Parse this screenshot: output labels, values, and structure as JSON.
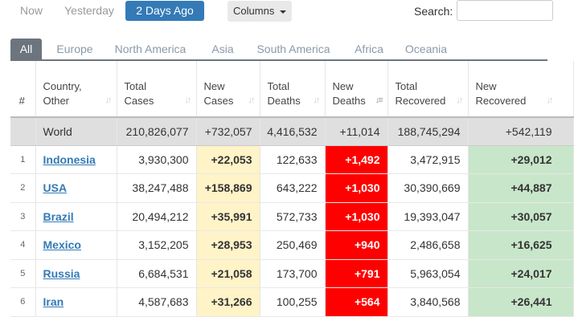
{
  "day_buttons": [
    {
      "label": "Now",
      "active": false
    },
    {
      "label": "Yesterday",
      "active": false
    },
    {
      "label": "2 Days Ago",
      "active": true
    }
  ],
  "columns_button": {
    "label": "Columns"
  },
  "search": {
    "label": "Search:",
    "value": ""
  },
  "region_tabs": [
    "All",
    "Europe",
    "North America",
    "Asia",
    "South America",
    "Africa",
    "Oceania"
  ],
  "active_region": "All",
  "columns": [
    {
      "line1": "#",
      "line2": ""
    },
    {
      "line1": "Country,",
      "line2": "Other"
    },
    {
      "line1": "Total",
      "line2": "Cases"
    },
    {
      "line1": "New",
      "line2": "Cases"
    },
    {
      "line1": "Total",
      "line2": "Deaths"
    },
    {
      "line1": "New",
      "line2": "Deaths"
    },
    {
      "line1": "Total",
      "line2": "Recovered"
    },
    {
      "line1": "New",
      "line2": "Recovered"
    }
  ],
  "world_row": {
    "country": "World",
    "total_cases": "210,826,077",
    "new_cases": "+732,057",
    "total_deaths": "4,416,532",
    "new_deaths": "+11,014",
    "total_recovered": "188,745,294",
    "new_recovered": "+542,119"
  },
  "rows": [
    {
      "idx": "1",
      "country": "Indonesia",
      "total_cases": "3,930,300",
      "new_cases": "+22,053",
      "total_deaths": "122,633",
      "new_deaths": "+1,492",
      "total_recovered": "3,472,915",
      "new_recovered": "+29,012"
    },
    {
      "idx": "2",
      "country": "USA",
      "total_cases": "38,247,488",
      "new_cases": "+158,869",
      "total_deaths": "643,222",
      "new_deaths": "+1,030",
      "total_recovered": "30,390,669",
      "new_recovered": "+44,887"
    },
    {
      "idx": "3",
      "country": "Brazil",
      "total_cases": "20,494,212",
      "new_cases": "+35,991",
      "total_deaths": "572,733",
      "new_deaths": "+1,030",
      "total_recovered": "19,393,047",
      "new_recovered": "+30,057"
    },
    {
      "idx": "4",
      "country": "Mexico",
      "total_cases": "3,152,205",
      "new_cases": "+28,953",
      "total_deaths": "250,469",
      "new_deaths": "+940",
      "total_recovered": "2,486,658",
      "new_recovered": "+16,625"
    },
    {
      "idx": "5",
      "country": "Russia",
      "total_cases": "6,684,531",
      "new_cases": "+21,058",
      "total_deaths": "173,700",
      "new_deaths": "+791",
      "total_recovered": "5,963,054",
      "new_recovered": "+24,017"
    },
    {
      "idx": "6",
      "country": "Iran",
      "total_cases": "4,587,683",
      "new_cases": "+31,266",
      "total_deaths": "100,255",
      "new_deaths": "+564",
      "total_recovered": "3,840,568",
      "new_recovered": "+26,441"
    }
  ],
  "colors": {
    "accent": "#337ab7",
    "new_cases_bg": "#fff3c8",
    "new_deaths_bg": "#ff0000",
    "new_recovered_bg": "#c8e6c9",
    "world_row_bg": "#dfdfdf"
  }
}
